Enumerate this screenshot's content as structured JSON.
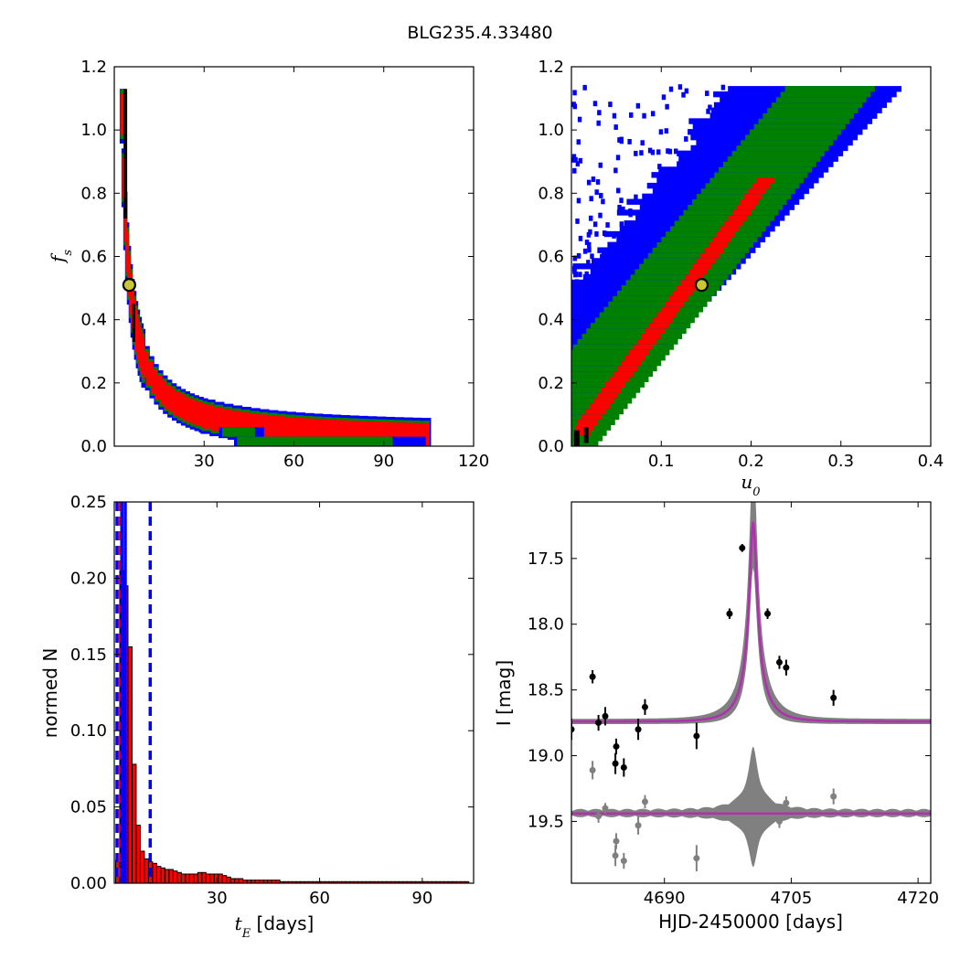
{
  "figure": {
    "title": "BLG235.4.33480"
  },
  "colors": {
    "level1": "#000000",
    "level2": "#ff0000",
    "level3": "#008000",
    "level4": "#0000ff",
    "marker_face": "#c8c832",
    "bar_fill": "#ff0000",
    "model_band": "#808080",
    "model_line": "#b030b0",
    "data_point": "#000000",
    "residual_point": "#808080",
    "dashed_line": "#0000ff"
  },
  "chart_data": [
    {
      "id": "tE_vs_fs",
      "type": "heatmap",
      "title": "",
      "xlabel": "",
      "ylabel": "f_s",
      "xlim": [
        0,
        120
      ],
      "ylim": [
        0,
        1.2
      ],
      "xticks": [
        "30",
        "60",
        "90",
        "120"
      ],
      "yticks": [
        "0.0",
        "0.2",
        "0.4",
        "0.6",
        "0.8",
        "1.0",
        "1.2"
      ],
      "best_fit": {
        "x": 5,
        "y": 0.51
      },
      "credible_regions": [
        {
          "level": "outer",
          "color": "#0000ff",
          "boxes": [
            [
              40,
              104,
              0.0,
              0.03
            ],
            [
              12,
              32,
              0.08,
              0.11
            ],
            [
              5,
              10,
              0.3,
              1.05
            ]
          ]
        },
        {
          "level": "mid",
          "color": "#008000",
          "boxes": [
            [
              40,
              94,
              0.0,
              0.03
            ],
            [
              18,
              38,
              0.05,
              0.08
            ],
            [
              4,
              8,
              0.3,
              1.0
            ]
          ]
        },
        {
          "level": "inner",
          "color": "#ff0000",
          "boxes": [
            [
              22,
              30,
              0.06,
              0.09
            ],
            [
              4,
              6,
              0.25,
              0.95
            ]
          ]
        },
        {
          "level": "core",
          "color": "#000000",
          "boxes": [
            [
              3,
              4,
              0.35,
              1.13
            ]
          ]
        }
      ]
    },
    {
      "id": "u0_vs_fs",
      "type": "heatmap",
      "title": "",
      "xlabel": "u_0",
      "ylabel": "",
      "xlim": [
        0,
        0.4
      ],
      "ylim": [
        0,
        1.2
      ],
      "xticks": [
        "0.1",
        "0.2",
        "0.3",
        "0.4"
      ],
      "yticks": [
        "0.0",
        "0.2",
        "0.4",
        "0.6",
        "0.8",
        "1.0",
        "1.2"
      ],
      "best_fit": {
        "x": 0.145,
        "y": 0.51
      },
      "band_edges": {
        "outer_lower": [
          [
            0.01,
            0.0
          ],
          [
            0.37,
            1.13
          ]
        ],
        "outer_upper": [
          [
            0.0,
            0.45
          ],
          [
            0.19,
            1.13
          ]
        ],
        "mid_lower": [
          [
            0.03,
            0.0
          ],
          [
            0.34,
            1.13
          ]
        ],
        "mid_upper": [
          [
            0.0,
            0.3
          ],
          [
            0.24,
            1.13
          ]
        ],
        "inner_lower": [
          [
            0.025,
            0.05
          ],
          [
            0.23,
            0.85
          ]
        ],
        "inner_upper": [
          [
            0.01,
            0.08
          ],
          [
            0.21,
            0.85
          ]
        ]
      }
    },
    {
      "id": "tE_histogram",
      "type": "bar",
      "title": "",
      "xlabel": "t_E [days]",
      "ylabel": "normed N",
      "xlim": [
        0,
        105
      ],
      "ylim": [
        0,
        0.25
      ],
      "xticks": [
        "30",
        "60",
        "90"
      ],
      "yticks": [
        "0.00",
        "0.05",
        "0.10",
        "0.15",
        "0.20",
        "0.25"
      ],
      "bin_width": 1.2,
      "x": [
        1.0,
        2.2,
        3.4,
        4.6,
        5.8,
        7.0,
        8.2,
        9.4,
        10.6,
        11.8,
        13.0,
        14.2,
        15.4,
        16.6,
        17.8,
        19.0,
        20.2,
        21.4,
        22.6,
        23.8,
        25.0,
        26.2,
        27.4,
        28.6,
        29.8,
        31.0,
        32.2,
        33.4,
        34.6,
        35.8,
        37.0,
        38.2,
        39.4,
        40.6,
        41.8,
        43.0,
        44.2,
        45.4,
        46.6,
        47.8,
        49.0,
        50.2,
        51.4,
        52.6,
        53.8,
        55.0,
        56.2,
        57.4,
        58.6,
        59.8,
        61.0,
        62.2,
        63.4,
        64.6,
        65.8,
        67.0,
        68.2,
        69.4,
        70.6,
        71.8,
        73.0,
        74.2,
        75.4,
        76.6,
        77.8,
        79.0,
        80.2,
        81.4,
        82.6,
        83.8,
        85.0,
        86.2,
        87.4,
        88.6,
        89.8,
        91.0,
        92.2,
        93.4,
        94.6,
        95.8,
        97.0,
        98.2,
        99.4,
        100.6,
        101.8,
        103.0
      ],
      "values": [
        0.015,
        0.205,
        0.195,
        0.155,
        0.078,
        0.038,
        0.021,
        0.016,
        0.014,
        0.013,
        0.011,
        0.01,
        0.009,
        0.009,
        0.008,
        0.007,
        0.006,
        0.006,
        0.006,
        0.006,
        0.007,
        0.007,
        0.006,
        0.006,
        0.006,
        0.006,
        0.005,
        0.004,
        0.003,
        0.003,
        0.003,
        0.002,
        0.002,
        0.002,
        0.002,
        0.002,
        0.002,
        0.002,
        0.002,
        0.002,
        0.001,
        0.001,
        0.001,
        0.001,
        0.001,
        0.001,
        0.001,
        0.001,
        0.001,
        0.001,
        0.001,
        0.001,
        0.001,
        0.001,
        0.001,
        0.001,
        0.001,
        0.001,
        0.001,
        0.001,
        0.001,
        0.001,
        0.001,
        0.001,
        0.001,
        0.001,
        0.001,
        0.001,
        0.001,
        0.001,
        0.001,
        0.001,
        0.001,
        0.001,
        0.001,
        0.001,
        0.001,
        0.001,
        0.001,
        0.001,
        0.001,
        0.001,
        0.001,
        0.001,
        0.001,
        0.001
      ],
      "vlines": [
        {
          "x": 0.8,
          "color": "#0000ff",
          "style": "dashed"
        },
        {
          "x": 1.6,
          "color": "#ff0000",
          "style": "dashed"
        },
        {
          "x": 2.2,
          "color": "#0000ff",
          "style": "solid"
        },
        {
          "x": 3.2,
          "color": "#0000ff",
          "style": "solid"
        },
        {
          "x": 10.5,
          "color": "#0000ff",
          "style": "dashed"
        }
      ]
    },
    {
      "id": "light_curve",
      "type": "scatter",
      "title": "",
      "xlabel": "HJD-2450000 [days]",
      "ylabel": "I [mag]",
      "xlim": [
        4679,
        4721.5
      ],
      "ylim": [
        19.97,
        17.07
      ],
      "xticks": [
        "4690",
        "4705",
        "4720"
      ],
      "yticks": [
        "17.5",
        "18.0",
        "18.5",
        "19.0",
        "19.5"
      ],
      "model": {
        "t0": 4700.5,
        "tE": 3.0,
        "u0": 0.145,
        "baseline": 18.74,
        "peak": 17.22,
        "residual_baseline": 19.44
      },
      "points": [
        {
          "t": 4679.0,
          "mag": 18.8,
          "err": 0.08
        },
        {
          "t": 4681.5,
          "mag": 18.4,
          "err": 0.05
        },
        {
          "t": 4682.2,
          "mag": 18.75,
          "err": 0.06
        },
        {
          "t": 4683.0,
          "mag": 18.7,
          "err": 0.07
        },
        {
          "t": 4684.3,
          "mag": 18.93,
          "err": 0.06
        },
        {
          "t": 4684.2,
          "mag": 19.06,
          "err": 0.08
        },
        {
          "t": 4685.2,
          "mag": 19.09,
          "err": 0.07
        },
        {
          "t": 4686.9,
          "mag": 18.8,
          "err": 0.08
        },
        {
          "t": 4687.7,
          "mag": 18.63,
          "err": 0.06
        },
        {
          "t": 4693.8,
          "mag": 18.85,
          "err": 0.1
        },
        {
          "t": 4697.7,
          "mag": 17.92,
          "err": 0.04
        },
        {
          "t": 4699.2,
          "mag": 17.42,
          "err": 0.03
        },
        {
          "t": 4702.2,
          "mag": 17.92,
          "err": 0.04
        },
        {
          "t": 4703.6,
          "mag": 18.29,
          "err": 0.05
        },
        {
          "t": 4704.4,
          "mag": 18.33,
          "err": 0.06
        },
        {
          "t": 4710.0,
          "mag": 18.56,
          "err": 0.06
        }
      ],
      "residual_points": [
        {
          "t": 4681.5,
          "mag": 19.11,
          "err": 0.07
        },
        {
          "t": 4682.2,
          "mag": 19.46,
          "err": 0.05
        },
        {
          "t": 4683.0,
          "mag": 19.4,
          "err": 0.04
        },
        {
          "t": 4684.3,
          "mag": 19.65,
          "err": 0.06
        },
        {
          "t": 4684.2,
          "mag": 19.76,
          "err": 0.08
        },
        {
          "t": 4685.2,
          "mag": 19.8,
          "err": 0.06
        },
        {
          "t": 4686.9,
          "mag": 19.53,
          "err": 0.07
        },
        {
          "t": 4687.7,
          "mag": 19.35,
          "err": 0.05
        },
        {
          "t": 4693.8,
          "mag": 19.78,
          "err": 0.1
        },
        {
          "t": 4703.6,
          "mag": 19.5,
          "err": 0.05
        },
        {
          "t": 4704.4,
          "mag": 19.36,
          "err": 0.05
        },
        {
          "t": 4710.0,
          "mag": 19.31,
          "err": 0.06
        }
      ]
    }
  ]
}
